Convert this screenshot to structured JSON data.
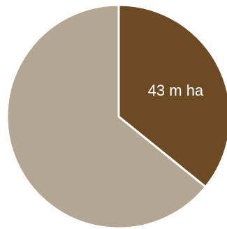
{
  "chart_data": {
    "type": "pie",
    "slices": [
      {
        "value": 43,
        "label": "43 m ha",
        "color": "#6b4a24"
      },
      {
        "value": 77,
        "label": "",
        "color": "#b3a693"
      }
    ],
    "start_angle_deg": 0,
    "direction": "clockwise",
    "separator_color": "#ffffff",
    "label_color": "#ffffff"
  }
}
